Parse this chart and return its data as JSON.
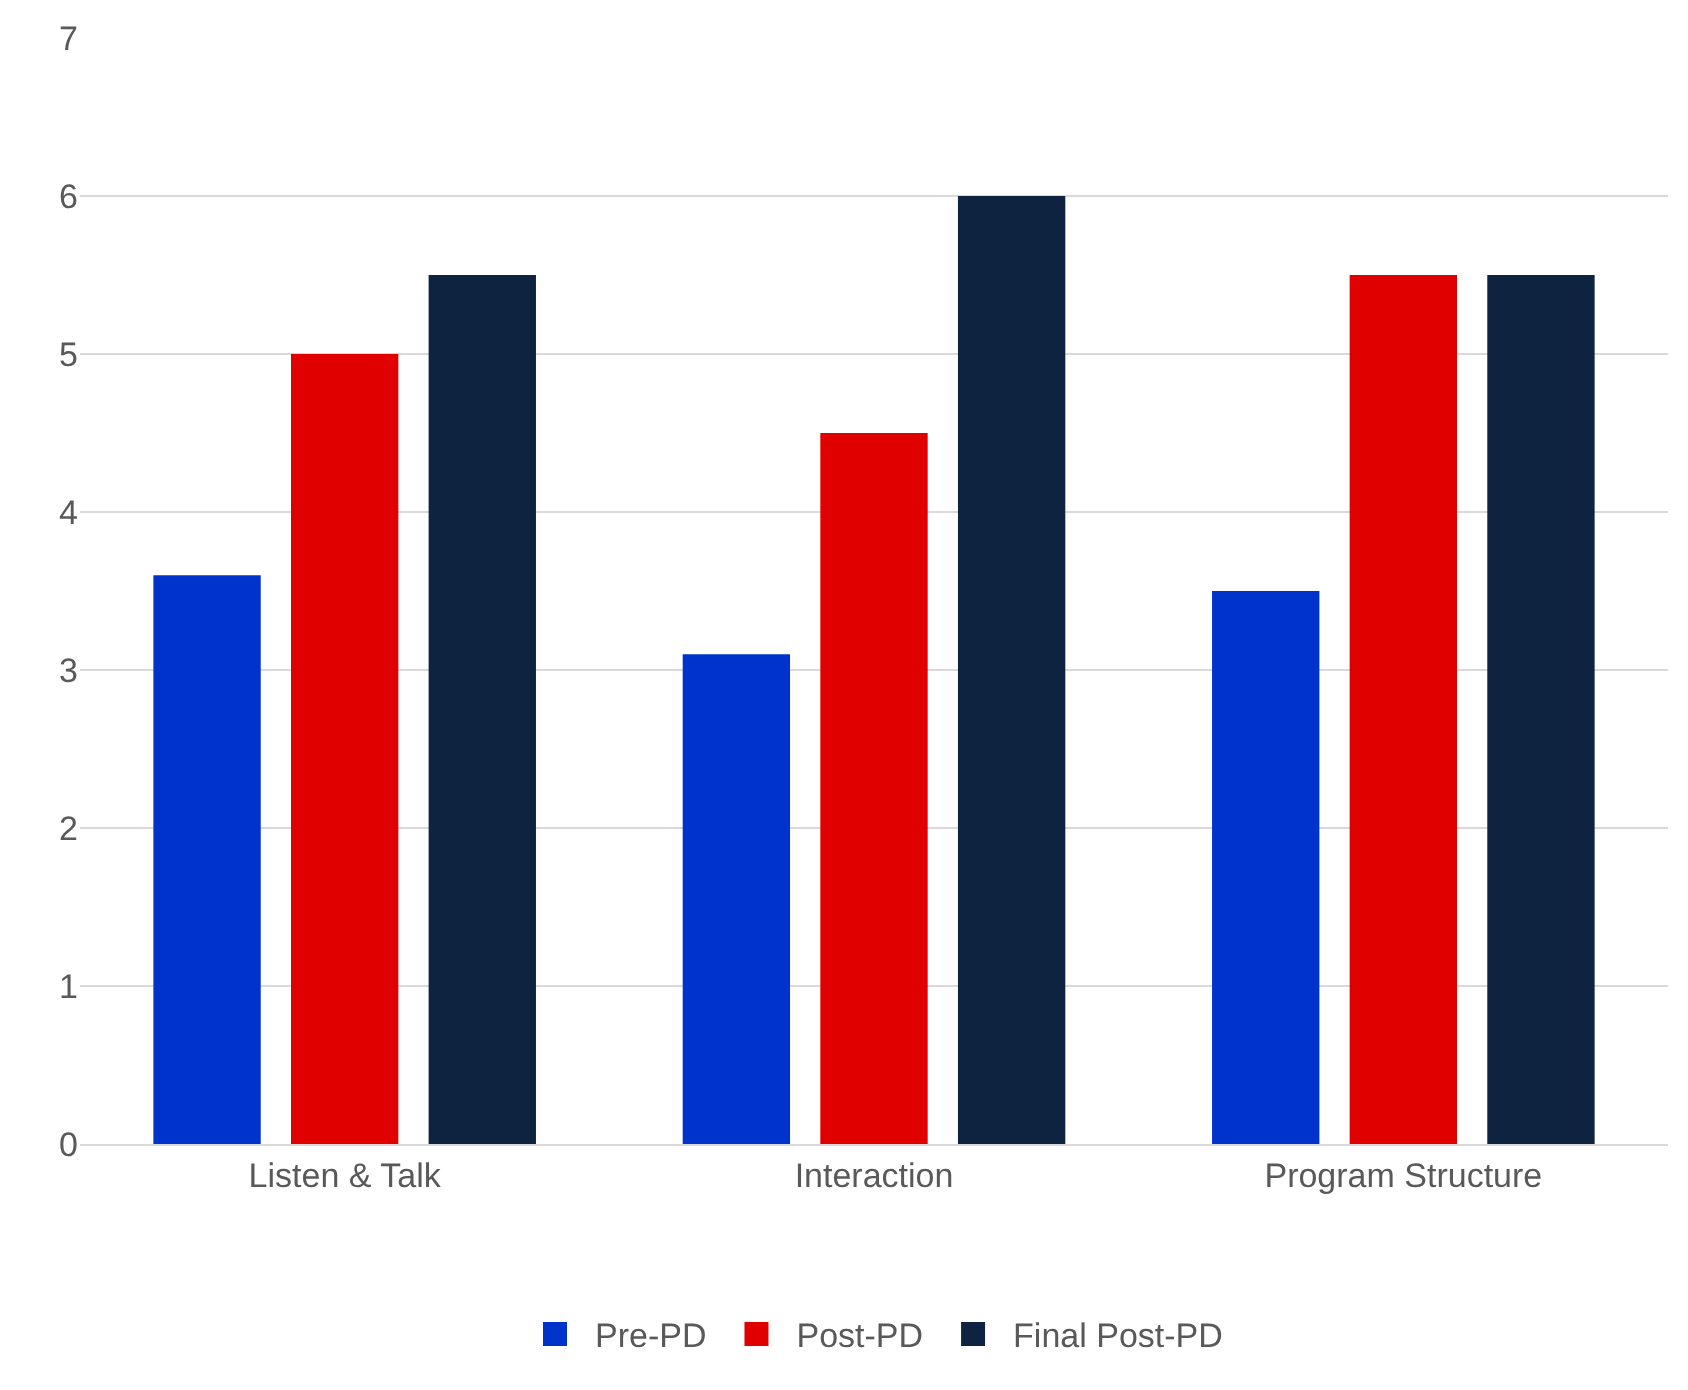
{
  "chart_data": {
    "type": "bar",
    "categories": [
      "Listen & Talk",
      "Interaction",
      "Program Structure"
    ],
    "series": [
      {
        "name": "Pre-PD",
        "color": "#0033cc",
        "values": [
          3.6,
          3.1,
          3.5
        ]
      },
      {
        "name": "Post-PD",
        "color": "#e00000",
        "values": [
          5,
          4.5,
          5.5
        ]
      },
      {
        "name": "Final Post-PD",
        "color": "#0d2340",
        "values": [
          5.5,
          6,
          5.5
        ]
      }
    ],
    "ylim": [
      0,
      7
    ],
    "yticks": [
      0,
      1,
      2,
      3,
      4,
      5,
      6,
      7
    ],
    "grid": "y",
    "legend": "bottom"
  }
}
